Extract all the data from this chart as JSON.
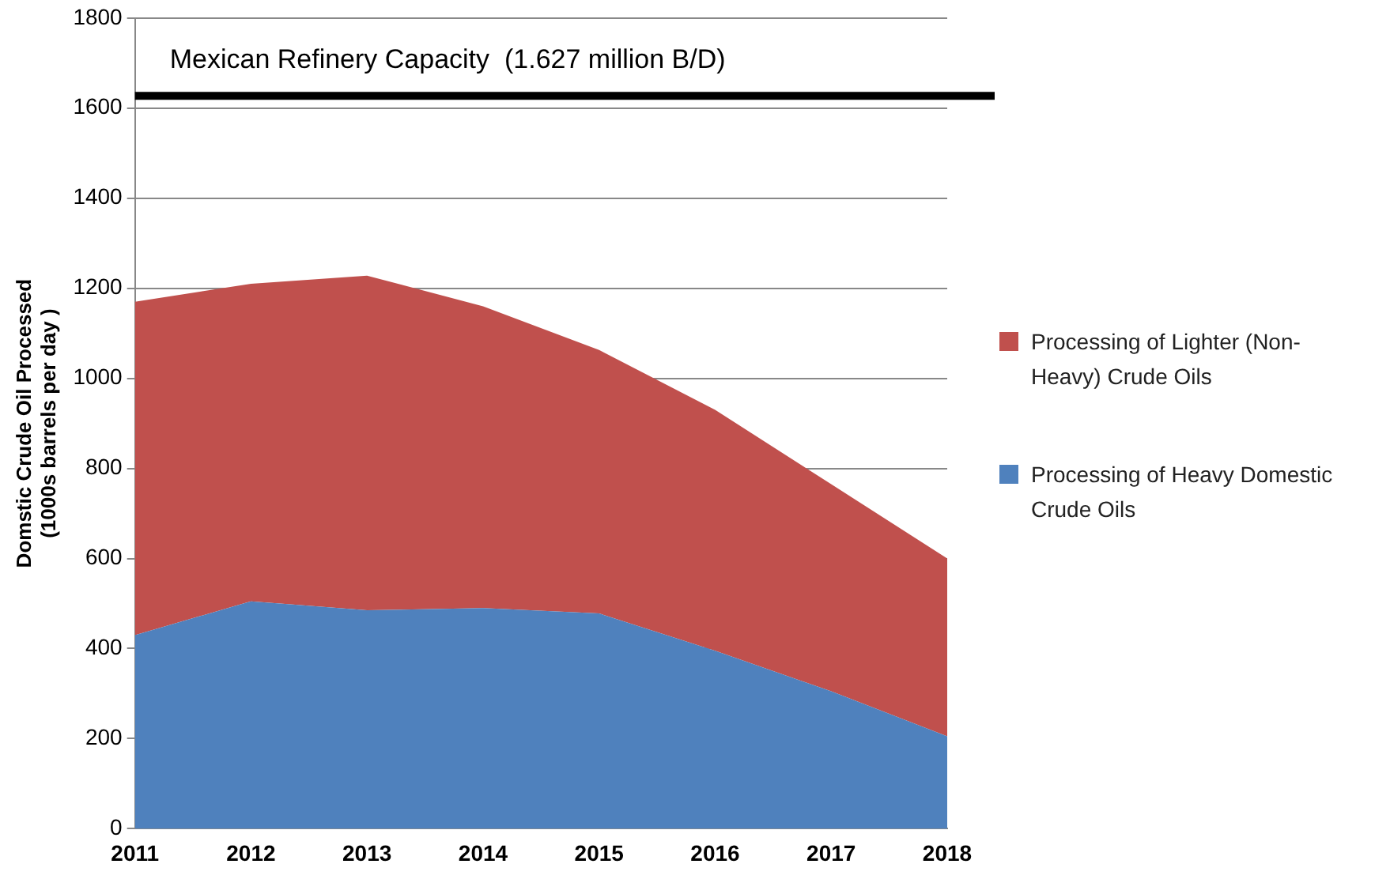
{
  "chart_data": {
    "type": "area",
    "stacked": true,
    "ylabel": "Domstic Crude Oil Processed\n(1000s barrels per day )",
    "categories": [
      "2011",
      "2012",
      "2013",
      "2014",
      "2015",
      "2016",
      "2017",
      "2018"
    ],
    "series": [
      {
        "name": "Processing of Heavy Domestic Crude Oils",
        "color": "#4f81bd",
        "values": [
          430,
          505,
          485,
          490,
          478,
          395,
          305,
          205
        ]
      },
      {
        "name": "Processing of Lighter (Non-Heavy) Crude Oils",
        "color": "#c0504d",
        "values": [
          740,
          705,
          743,
          670,
          585,
          535,
          460,
          395
        ]
      }
    ],
    "ylim": [
      0,
      1800
    ],
    "yticks": [
      0,
      200,
      400,
      600,
      800,
      1000,
      1200,
      1400,
      1600,
      1800
    ],
    "grid": "y",
    "legend": "right",
    "ref_lines": [
      {
        "axis": "y",
        "value": 1627,
        "label": "Mexican Refinery Capacity  (1.627 million B/D)",
        "color": "#000000"
      }
    ]
  }
}
